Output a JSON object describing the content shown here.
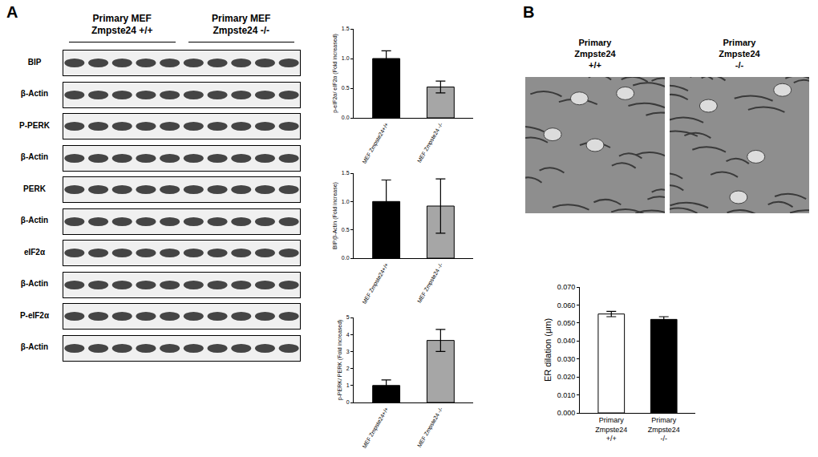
{
  "panel_labels": [
    "A",
    "B"
  ],
  "blot": {
    "groups": [
      "Primary MEF\nZmpste24 +/+",
      "Primary MEF\nZmpste24 -/-"
    ],
    "lanes_per_group": 5,
    "rows": [
      "BIP",
      "β-Actin",
      "P-PERK",
      "β-Actin",
      "PERK",
      "β-Actin",
      "eIF2α",
      "β-Actin",
      "P-eIF2α",
      "β-Actin"
    ]
  },
  "micrograph": {
    "labels": [
      "Primary\nZmpste24\n+/+",
      "Primary\nZmpste24\n-/-"
    ]
  },
  "chart_data": [
    {
      "type": "bar",
      "ylabel": "p-eIF2α/ eIF2α (Fold increased)",
      "categories": [
        "MEF Zmpste24+/+",
        "MEF Zmpste24 -/-"
      ],
      "values": [
        1.0,
        0.52
      ],
      "errors": [
        0.13,
        0.1
      ],
      "colors": [
        "#000000",
        "#a6a6a6"
      ],
      "ylim": [
        0,
        1.5
      ],
      "yticks": [
        {
          "value": 0,
          "label": "0.0"
        },
        {
          "value": 0.5,
          "label": "0.5"
        },
        {
          "value": 1,
          "label": "1.0"
        },
        {
          "value": 1.5,
          "label": "1.5"
        }
      ],
      "grid": false
    },
    {
      "type": "bar",
      "ylabel": "BIP/β-Actin (Fold increase)",
      "categories": [
        "MEF Zmpste24+/+",
        "MEF Zmpste24 -/-"
      ],
      "values": [
        1.0,
        0.92
      ],
      "errors": [
        0.38,
        0.48
      ],
      "colors": [
        "#000000",
        "#a6a6a6"
      ],
      "ylim": [
        0,
        1.5
      ],
      "yticks": [
        {
          "value": 0,
          "label": "0.0"
        },
        {
          "value": 0.5,
          "label": "0.5"
        },
        {
          "value": 1,
          "label": "1.0"
        },
        {
          "value": 1.5,
          "label": "1.5"
        }
      ],
      "grid": false
    },
    {
      "type": "bar",
      "ylabel": "p-PERK/ PERK (Fold increased)",
      "categories": [
        "MEF Zmpste24+/+",
        "MEF Zmpste24 -/-"
      ],
      "values": [
        1.0,
        3.65
      ],
      "errors": [
        0.33,
        0.65
      ],
      "colors": [
        "#000000",
        "#a6a6a6"
      ],
      "ylim": [
        0,
        5
      ],
      "yticks": [
        0,
        1,
        2,
        3,
        4,
        5
      ],
      "grid": false
    },
    {
      "type": "bar",
      "ylabel": "ER dilation (μm)",
      "categories": [
        "Primary\nZmpste24\n+/+",
        "Primary\nZmpste24\n-/-"
      ],
      "values": [
        0.055,
        0.052
      ],
      "errors": [
        0.0015,
        0.0015
      ],
      "colors": [
        "#ffffff",
        "#000000"
      ],
      "ylim": [
        0,
        0.07
      ],
      "yticks": [
        {
          "value": 0,
          "label": "0.000"
        },
        {
          "value": 0.01,
          "label": "0.010"
        },
        {
          "value": 0.02,
          "label": "0.020"
        },
        {
          "value": 0.03,
          "label": "0.030"
        },
        {
          "value": 0.04,
          "label": "0.040"
        },
        {
          "value": 0.05,
          "label": "0.050"
        },
        {
          "value": 0.06,
          "label": "0.060"
        },
        {
          "value": 0.07,
          "label": "0.070"
        }
      ],
      "grid": false
    }
  ]
}
